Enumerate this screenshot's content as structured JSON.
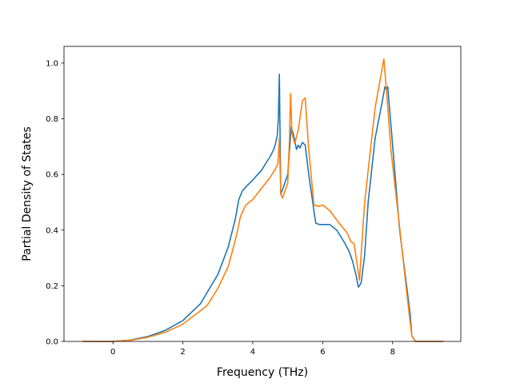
{
  "chart_data": {
    "type": "line",
    "title": "",
    "xlabel": "Frequency (THz)",
    "ylabel": "Partial Density of States",
    "xlim": [
      -1.4,
      9.95
    ],
    "ylim": [
      0,
      1.06
    ],
    "xticks": [
      0,
      2,
      4,
      6,
      8
    ],
    "yticks": [
      0.0,
      0.2,
      0.4,
      0.6,
      0.8,
      1.0
    ],
    "xtick_labels": [
      "0",
      "2",
      "4",
      "6",
      "8"
    ],
    "ytick_labels": [
      "0.0",
      "0.2",
      "0.4",
      "0.6",
      "0.8",
      "1.0"
    ],
    "grid": false,
    "legend": "none",
    "series": [
      {
        "color": "#1f77b4",
        "x": [
          -0.87,
          0.0,
          0.5,
          1.0,
          1.5,
          2.0,
          2.5,
          3.0,
          3.3,
          3.5,
          3.6,
          3.7,
          3.8,
          4.0,
          4.25,
          4.5,
          4.6,
          4.65,
          4.7,
          4.73,
          4.76,
          4.8,
          4.85,
          5.0,
          5.1,
          5.17,
          5.25,
          5.3,
          5.35,
          5.42,
          5.5,
          5.6,
          5.8,
          5.9,
          6.0,
          6.2,
          6.4,
          6.6,
          6.75,
          6.85,
          6.95,
          7.02,
          7.1,
          7.2,
          7.3,
          7.5,
          7.7,
          7.78,
          7.82,
          7.86,
          7.95,
          8.2,
          8.4,
          8.5,
          8.55,
          8.65,
          9.0,
          9.45
        ],
        "y": [
          0.0,
          0.0,
          0.005,
          0.018,
          0.04,
          0.075,
          0.135,
          0.24,
          0.34,
          0.44,
          0.51,
          0.54,
          0.555,
          0.58,
          0.615,
          0.665,
          0.69,
          0.71,
          0.74,
          0.8,
          0.96,
          0.53,
          0.545,
          0.6,
          0.77,
          0.74,
          0.69,
          0.705,
          0.695,
          0.715,
          0.705,
          0.6,
          0.425,
          0.42,
          0.42,
          0.42,
          0.4,
          0.36,
          0.325,
          0.29,
          0.24,
          0.195,
          0.21,
          0.31,
          0.5,
          0.73,
          0.86,
          0.915,
          0.905,
          0.915,
          0.78,
          0.4,
          0.2,
          0.1,
          0.02,
          0.0,
          0.0,
          0.0
        ]
      },
      {
        "color": "#ff7f0e",
        "x": [
          -0.87,
          0.0,
          0.5,
          1.0,
          1.5,
          2.0,
          2.5,
          2.7,
          3.0,
          3.3,
          3.45,
          3.55,
          3.65,
          3.8,
          4.0,
          4.25,
          4.5,
          4.65,
          4.72,
          4.76,
          4.8,
          4.85,
          5.0,
          5.05,
          5.08,
          5.12,
          5.2,
          5.3,
          5.42,
          5.5,
          5.6,
          5.75,
          5.9,
          6.0,
          6.2,
          6.5,
          6.7,
          6.8,
          6.9,
          7.05,
          7.2,
          7.5,
          7.75,
          7.85,
          7.95,
          8.2,
          8.4,
          8.5,
          8.55,
          8.65,
          9.0,
          9.45
        ],
        "y": [
          0.0,
          0.0,
          0.004,
          0.015,
          0.033,
          0.062,
          0.11,
          0.13,
          0.19,
          0.27,
          0.34,
          0.39,
          0.45,
          0.49,
          0.51,
          0.55,
          0.59,
          0.62,
          0.64,
          0.73,
          0.53,
          0.515,
          0.57,
          0.73,
          0.89,
          0.75,
          0.71,
          0.76,
          0.865,
          0.875,
          0.69,
          0.49,
          0.485,
          0.49,
          0.47,
          0.42,
          0.39,
          0.36,
          0.35,
          0.22,
          0.5,
          0.84,
          1.015,
          0.86,
          0.69,
          0.41,
          0.18,
          0.07,
          0.02,
          0.0,
          0.0,
          0.0
        ]
      }
    ]
  }
}
